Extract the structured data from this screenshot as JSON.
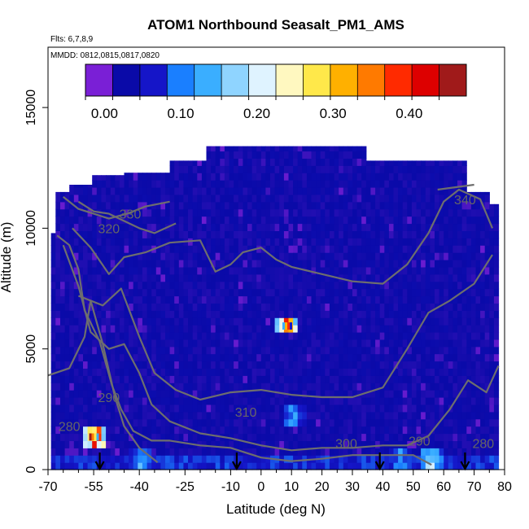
{
  "chart_data": {
    "type": "heatmap",
    "title": "ATOM1 Northbound Seasalt_PM1_AMS",
    "flights_label": "Flts: 6,7,8,9",
    "dates_label": "MMDD: 0812,0815,0817,0820",
    "xlabel": "Latitude (deg N)",
    "ylabel": "Altitude (m)",
    "xlim": [
      -70,
      80
    ],
    "ylim": [
      0,
      17500
    ],
    "x_ticks": [
      -70,
      -55,
      -40,
      -25,
      -10,
      0,
      10,
      20,
      30,
      40,
      50,
      60,
      70,
      80
    ],
    "x_tick_labels": [
      "-70",
      "-55",
      "-40",
      "-25",
      "-10",
      "0",
      "10",
      "20",
      "30",
      "40",
      "50",
      "60",
      "70",
      "80"
    ],
    "y_ticks": [
      0,
      5000,
      10000,
      15000
    ],
    "y_tick_labels": [
      "0",
      "5000",
      "10000",
      "15000"
    ],
    "colorbar": {
      "range": [
        -0.025,
        0.475
      ],
      "ticks": [
        0.0,
        0.1,
        0.2,
        0.3,
        0.4
      ],
      "tick_labels": [
        "0.00",
        "0.10",
        "0.20",
        "0.30",
        "0.40"
      ],
      "colors": [
        "#7a1fd6",
        "#0a0aa8",
        "#1515c8",
        "#1a7fff",
        "#3aaeff",
        "#8fd4ff",
        "#dff3ff",
        "#fff8c0",
        "#ffe84a",
        "#ffb000",
        "#ff7a00",
        "#ff2a00",
        "#dd0000",
        "#a01a1a"
      ]
    },
    "contour_labels": [
      "330",
      "320",
      "340",
      "290",
      "280",
      "310",
      "300",
      "290",
      "280"
    ],
    "contour_levels": [
      280,
      290,
      300,
      310,
      320,
      330,
      340
    ],
    "value_range_dominant": [
      0.0,
      0.03
    ],
    "hotspots": [
      {
        "lat": -55,
        "alt": 1200,
        "value": 0.4
      },
      {
        "lat": 8,
        "alt": 5800,
        "value": 0.4
      },
      {
        "lat": 10,
        "alt": 2100,
        "value": 0.12
      },
      {
        "lat": -40,
        "alt": 300,
        "value": 0.15
      },
      {
        "lat": 55,
        "alt": 300,
        "value": 0.2
      },
      {
        "lat": 45,
        "alt": 300,
        "value": 0.12
      }
    ],
    "flight_marker_lats": [
      -53,
      -8,
      39,
      67
    ],
    "grid": false
  }
}
